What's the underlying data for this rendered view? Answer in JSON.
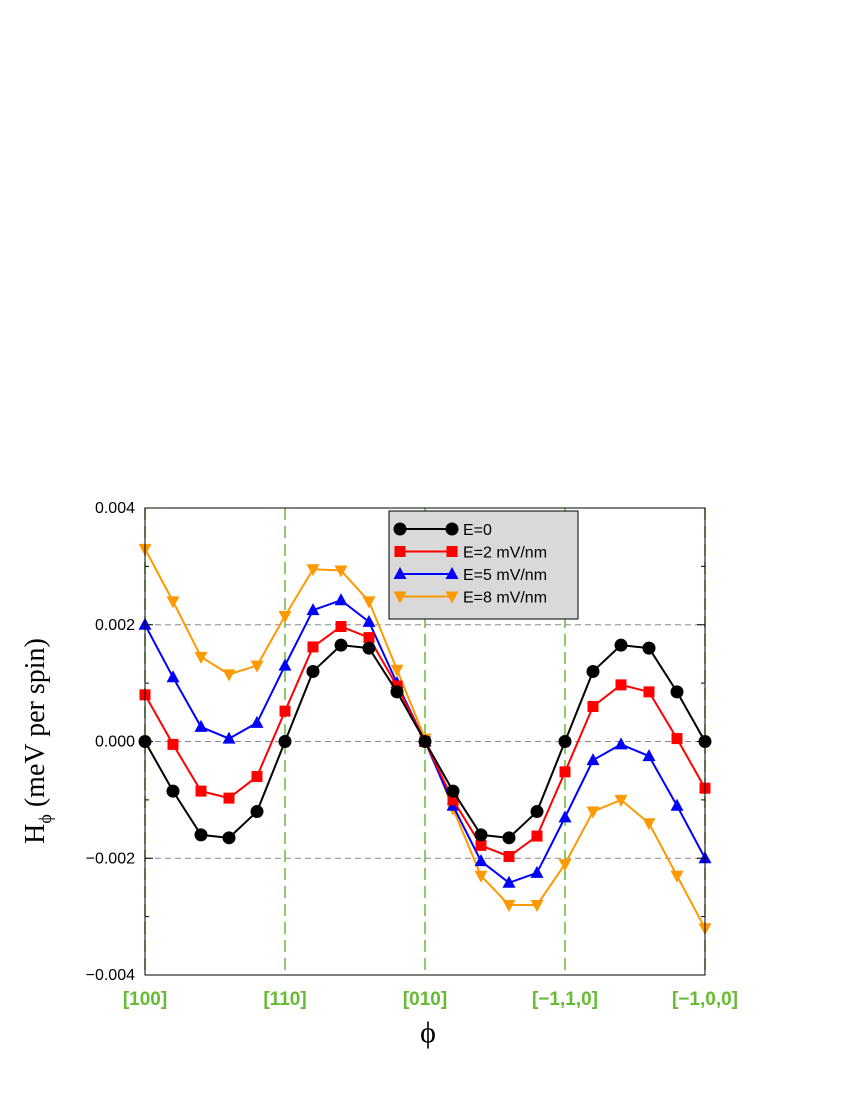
{
  "chart_data": {
    "type": "line",
    "ylabel": "H",
    "ylabel_subscript": "ϕ",
    "ylabel_unit": "(meV per spin)",
    "xlabel": "ϕ",
    "ylim": [
      -0.004,
      0.004
    ],
    "xlim": [
      0,
      20
    ],
    "yticks": [
      -0.004,
      -0.002,
      0.0,
      0.002,
      0.004
    ],
    "ytick_labels": [
      "−0.004",
      "−0.002",
      "0.000",
      "0.002",
      "0.004"
    ],
    "x_direction_ticks": [
      {
        "x": 0,
        "label": "[100]"
      },
      {
        "x": 5,
        "label": "[110]"
      },
      {
        "x": 10,
        "label": "[010]"
      },
      {
        "x": 15,
        "label": "[−1,1,0]"
      },
      {
        "x": 20,
        "label": "[−1,0,0]"
      }
    ],
    "x": [
      0,
      1,
      2,
      3,
      4,
      5,
      6,
      7,
      8,
      9,
      10,
      11,
      12,
      13,
      14,
      15,
      16,
      17,
      18,
      19,
      20
    ],
    "grid": "dashed horizontal gray at y ticks; dashed vertical green at direction ticks",
    "legend_position": "top-center",
    "colors": {
      "direction_label": "#66bb33",
      "vertical_grid": "#66bb33",
      "horizontal_grid": "#888888",
      "legend_bg": "#d9d9d9"
    },
    "series": [
      {
        "name": "E=0",
        "color": "#000000",
        "marker": "circle",
        "values": [
          0.0,
          -0.00085,
          -0.0016,
          -0.00165,
          -0.0012,
          0.0,
          0.0012,
          0.00165,
          0.0016,
          0.00085,
          0.0,
          -0.00085,
          -0.0016,
          -0.00165,
          -0.0012,
          0.0,
          0.0012,
          0.00165,
          0.0016,
          0.00085,
          0.0
        ]
      },
      {
        "name": "E=2 mV/nm",
        "color": "#ff0000",
        "marker": "square",
        "values": [
          0.0008,
          -5e-05,
          -0.00085,
          -0.00097,
          -0.0006,
          0.00052,
          0.00162,
          0.00197,
          0.00178,
          0.00095,
          0.0,
          -0.001,
          -0.00178,
          -0.00197,
          -0.00162,
          -0.00052,
          0.0006,
          0.00097,
          0.00085,
          5e-05,
          -0.0008
        ]
      },
      {
        "name": "E=5 mV/nm",
        "color": "#0000ff",
        "marker": "triangle-up",
        "values": [
          0.002,
          0.0011,
          0.00025,
          5e-05,
          0.00032,
          0.0013,
          0.00225,
          0.00242,
          0.00205,
          0.001,
          0.0,
          -0.0011,
          -0.00205,
          -0.00242,
          -0.00225,
          -0.0013,
          -0.00032,
          -5e-05,
          -0.00025,
          -0.0011,
          -0.002
        ]
      },
      {
        "name": "E=8 mV/nm",
        "color": "#ff9900",
        "marker": "triangle-down",
        "values": [
          0.0033,
          0.0024,
          0.00145,
          0.00115,
          0.0013,
          0.00215,
          0.00295,
          0.00293,
          0.0024,
          0.00123,
          5e-05,
          -0.00115,
          -0.0023,
          -0.0028,
          -0.0028,
          -0.0021,
          -0.0012,
          -0.001,
          -0.0014,
          -0.0023,
          -0.0032
        ]
      }
    ]
  }
}
